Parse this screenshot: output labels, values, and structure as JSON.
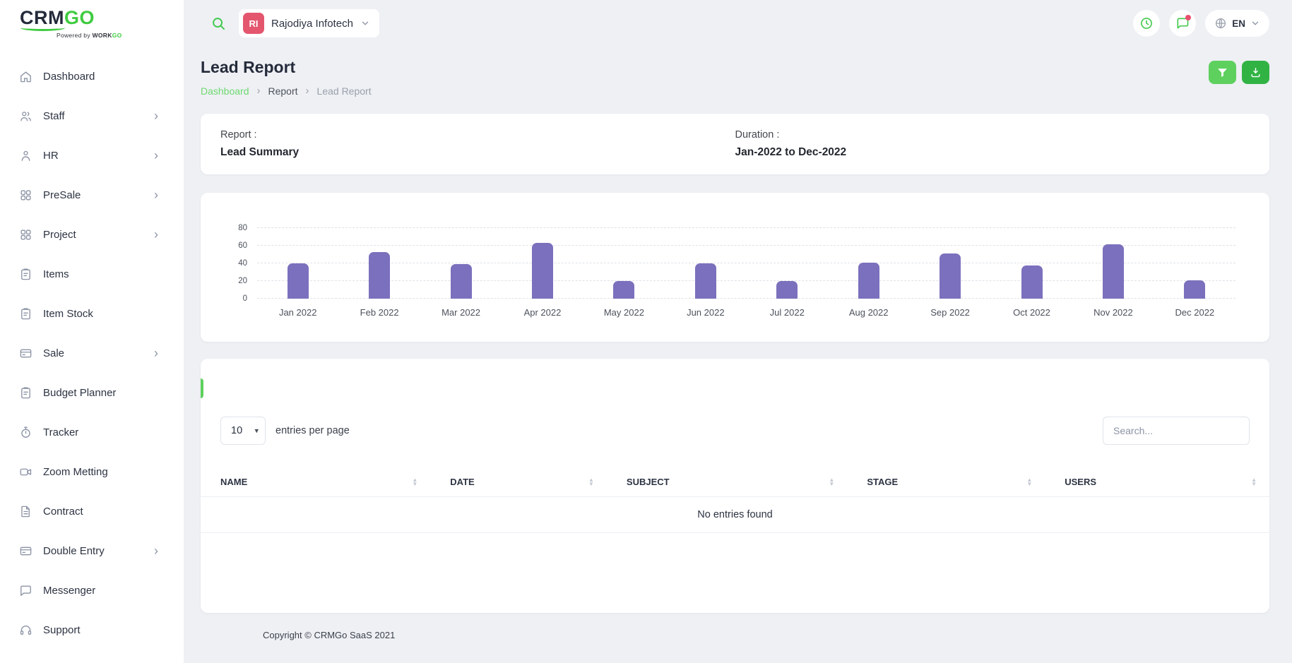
{
  "brand": {
    "crm": "CRM",
    "go": "GO",
    "tagline_prefix": "Powered by ",
    "tagline_work": "WORK",
    "tagline_go": "GO"
  },
  "header": {
    "company": {
      "initials": "RI",
      "name": "Rajodiya Infotech"
    },
    "language": "EN",
    "icons": [
      "search-icon",
      "clock-icon",
      "chat-notification-icon",
      "globe-icon"
    ]
  },
  "sidebar": {
    "items": [
      {
        "label": "Dashboard",
        "icon": "home-icon",
        "has_submenu": false
      },
      {
        "label": "Staff",
        "icon": "users-icon",
        "has_submenu": true
      },
      {
        "label": "HR",
        "icon": "hr-person-icon",
        "has_submenu": true
      },
      {
        "label": "PreSale",
        "icon": "grid-icon",
        "has_submenu": true
      },
      {
        "label": "Project",
        "icon": "grid-icon",
        "has_submenu": true
      },
      {
        "label": "Items",
        "icon": "clipboard-icon",
        "has_submenu": false
      },
      {
        "label": "Item Stock",
        "icon": "clipboard-icon",
        "has_submenu": false
      },
      {
        "label": "Sale",
        "icon": "wallet-icon",
        "has_submenu": true
      },
      {
        "label": "Budget Planner",
        "icon": "clipboard-icon",
        "has_submenu": false
      },
      {
        "label": "Tracker",
        "icon": "stopwatch-icon",
        "has_submenu": false
      },
      {
        "label": "Zoom Metting",
        "icon": "video-camera-icon",
        "has_submenu": false
      },
      {
        "label": "Contract",
        "icon": "document-icon",
        "has_submenu": false
      },
      {
        "label": "Double Entry",
        "icon": "wallet-icon",
        "has_submenu": true
      },
      {
        "label": "Messenger",
        "icon": "chat-icon",
        "has_submenu": false
      },
      {
        "label": "Support",
        "icon": "headset-icon",
        "has_submenu": false
      }
    ]
  },
  "page": {
    "title": "Lead Report",
    "breadcrumb": [
      "Dashboard",
      "Report",
      "Lead Report"
    ],
    "actions": {
      "filter_icon": "funnel-icon",
      "download_icon": "download-icon"
    }
  },
  "summary": {
    "report_label": "Report :",
    "report_value": "Lead Summary",
    "duration_label": "Duration :",
    "duration_value": "Jan-2022 to Dec-2022"
  },
  "chart_data": {
    "type": "bar",
    "title": "Lead Summary Jan-2022 to Dec-2022",
    "categories": [
      "Jan 2022",
      "Feb 2022",
      "Mar 2022",
      "Apr 2022",
      "May 2022",
      "Jun 2022",
      "Jul 2022",
      "Aug 2022",
      "Sep 2022",
      "Oct 2022",
      "Nov 2022",
      "Dec 2022"
    ],
    "values": [
      40,
      53,
      39,
      63,
      20,
      40,
      20,
      41,
      51,
      38,
      62,
      21
    ],
    "bar_color": "#7b70bd",
    "xlabel": "",
    "ylabel": "",
    "ylim": [
      0,
      80
    ],
    "yticks": [
      0,
      20,
      40,
      60,
      80
    ],
    "grid": true,
    "legend_position": "none"
  },
  "table": {
    "entries_per_page_value": "10",
    "entries_per_page_label": "entries per page",
    "search_placeholder": "Search...",
    "columns": [
      "NAME",
      "DATE",
      "SUBJECT",
      "STAGE",
      "USERS"
    ],
    "empty_text": "No entries found"
  },
  "footer": {
    "copyright": "Copyright © CRMGo SaaS 2021"
  }
}
